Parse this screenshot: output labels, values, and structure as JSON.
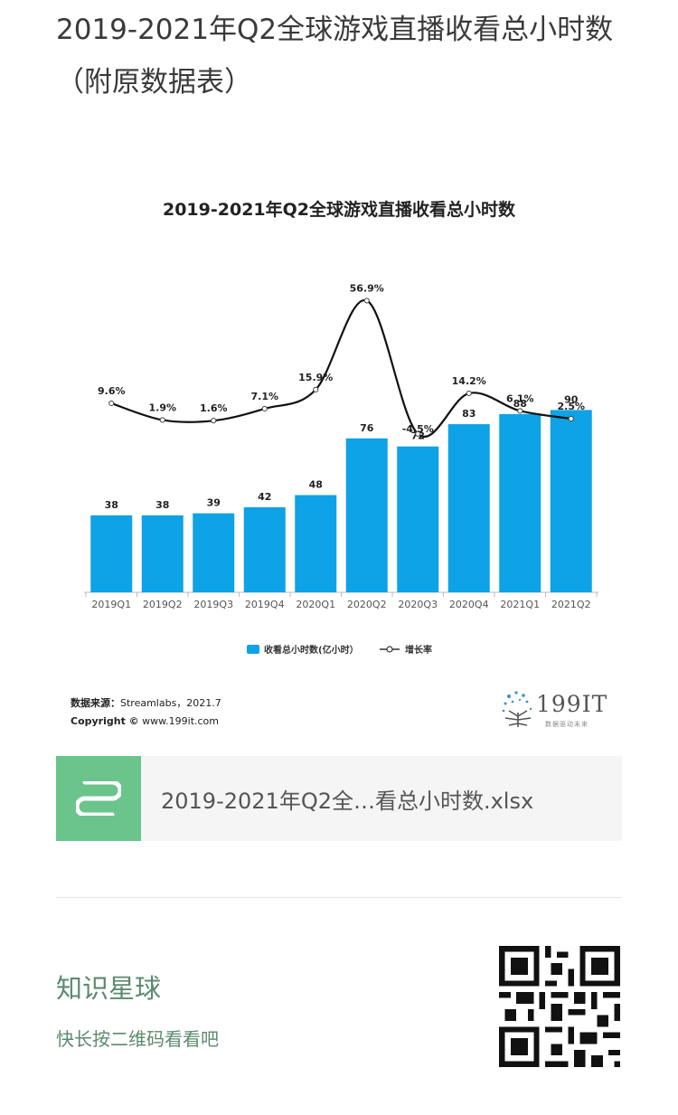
{
  "page": {
    "title": "2019-2021年Q2全球游戏直播收看总小时数（附原数据表）"
  },
  "chart_data": {
    "type": "bar",
    "title": "2019-2021年Q2全球游戏直播收看总小时数",
    "categories": [
      "2019Q1",
      "2019Q2",
      "2019Q3",
      "2019Q4",
      "2020Q1",
      "2020Q2",
      "2020Q3",
      "2020Q4",
      "2021Q1",
      "2021Q2"
    ],
    "series": [
      {
        "name": "收看总小时数(亿小时）",
        "type": "bar",
        "values": [
          38,
          38,
          39,
          42,
          48,
          76,
          72,
          83,
          88,
          90
        ],
        "color": "#0ea2e6"
      },
      {
        "name": "增长率",
        "type": "line",
        "values": [
          9.6,
          1.9,
          1.6,
          7.1,
          15.9,
          56.9,
          -4.5,
          14.2,
          6.1,
          2.5
        ],
        "labels": [
          "9.6%",
          "1.9%",
          "1.6%",
          "7.1%",
          "15.9%",
          "56.9%",
          "-4.5%",
          "14.2%",
          "6.1%",
          "2.5%"
        ],
        "color": "#111111"
      }
    ],
    "legend_position": "bottom",
    "grid": false
  },
  "source": {
    "label": "数据来源：",
    "value": "Streamlabs，2021.7",
    "copyright_label": "Copyright ©",
    "copyright_value": "www.199it.com"
  },
  "logo": {
    "text": "199IT",
    "subtitle": "数据驱动未来"
  },
  "attachment": {
    "file_name": "2019-2021年Q2全…看总小时数.xlsx",
    "icon": "spreadsheet-icon",
    "icon_color": "#6ac48c"
  },
  "footer": {
    "title": "知识星球",
    "subtitle": "快长按二维码看看吧",
    "qr_icon": "qr-code-icon"
  }
}
